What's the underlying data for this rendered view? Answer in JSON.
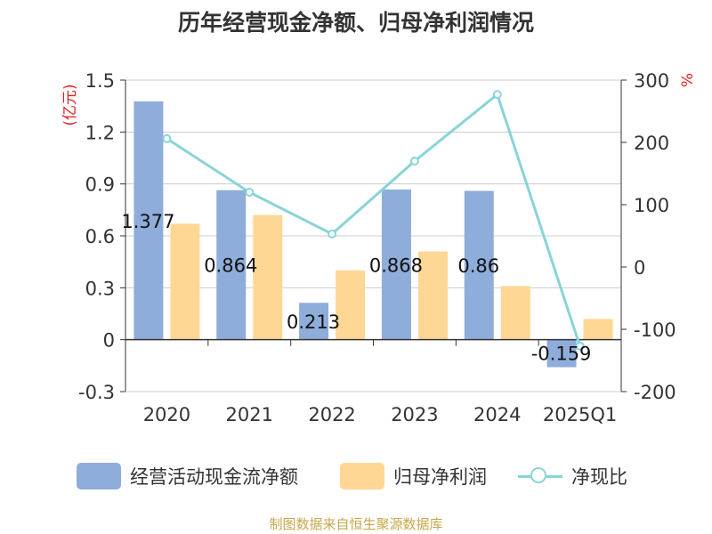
{
  "chart_data": {
    "type": "bar",
    "title": "历年经营现金净额、归母净利润情况",
    "categories": [
      "2020",
      "2021",
      "2022",
      "2023",
      "2024",
      "2025Q1"
    ],
    "series": [
      {
        "name": "经营活动现金流净额",
        "type": "bar",
        "axis": "left",
        "color": "#8fadda",
        "values": [
          1.377,
          0.864,
          0.213,
          0.868,
          0.86,
          -0.159
        ]
      },
      {
        "name": "归母净利润",
        "type": "bar",
        "axis": "left",
        "color": "#ffd794",
        "values": [
          0.67,
          0.72,
          0.4,
          0.51,
          0.31,
          0.12
        ]
      },
      {
        "name": "净现比",
        "type": "line",
        "axis": "right",
        "color": "#88d4d8",
        "values": [
          206,
          120,
          53,
          170,
          277,
          -127
        ]
      }
    ],
    "data_labels": [
      "1.377",
      "0.864",
      "0.213",
      "0.868",
      "0.86",
      "-0.159"
    ],
    "y_left": {
      "label": "(亿元)",
      "ticks": [
        "1.5",
        "1.2",
        "0.9",
        "0.6",
        "0.3",
        "0",
        "-0.3"
      ],
      "range": [
        -0.3,
        1.5
      ]
    },
    "y_right": {
      "label": "%",
      "ticks": [
        "300",
        "200",
        "100",
        "0",
        "-100",
        "-200"
      ],
      "range": [
        -200,
        300
      ]
    },
    "grid": true,
    "legend_position": "bottom"
  },
  "source_text": "制图数据来自恒生聚源数据库"
}
